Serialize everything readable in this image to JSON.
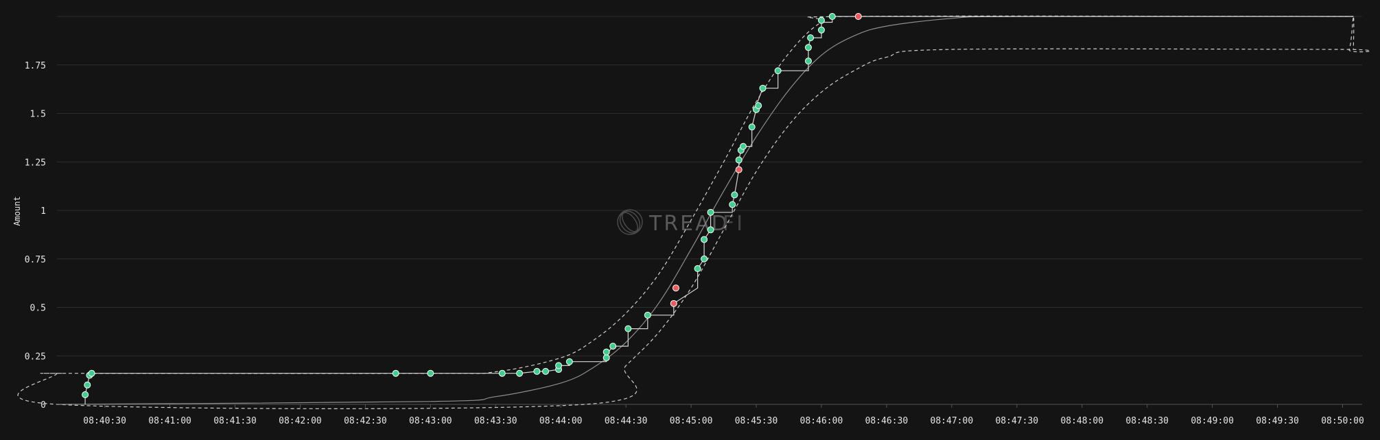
{
  "watermark": {
    "text": "TREAD",
    "suffix": "FI"
  },
  "chart_data": {
    "type": "scatter",
    "title": "",
    "xlabel": "",
    "ylabel": "Amount",
    "grid": true,
    "legend": "none",
    "ylim": [
      0,
      2
    ],
    "xlim": [
      "08:40:08",
      "08:50:09"
    ],
    "yticks": [
      {
        "value": 0,
        "label": "0"
      },
      {
        "value": 0.25,
        "label": "0.25"
      },
      {
        "value": 0.5,
        "label": "0.5"
      },
      {
        "value": 0.75,
        "label": "0.75"
      },
      {
        "value": 1,
        "label": "1"
      },
      {
        "value": 1.25,
        "label": "1.25"
      },
      {
        "value": 1.5,
        "label": "1.5"
      },
      {
        "value": 1.75,
        "label": "1.75"
      }
    ],
    "xticks": [
      "08:40:30",
      "08:41:00",
      "08:41:30",
      "08:42:00",
      "08:42:30",
      "08:43:00",
      "08:43:30",
      "08:44:00",
      "08:44:30",
      "08:45:00",
      "08:45:30",
      "08:46:00",
      "08:46:30",
      "08:47:00",
      "08:47:30",
      "08:48:00",
      "08:48:30",
      "08:49:00",
      "08:49:30",
      "08:50:00"
    ],
    "colors": {
      "fill": "#3ecf8e",
      "cancel": "#f05a5a",
      "line": "#d6d6d6",
      "grid": "#2e2e2e",
      "background": "#141414"
    },
    "expected_curve": [
      [
        "08:40:08",
        0
      ],
      [
        "08:43:00",
        0.015
      ],
      [
        "08:43:30",
        0.04
      ],
      [
        "08:44:00",
        0.11
      ],
      [
        "08:44:15",
        0.19
      ],
      [
        "08:44:30",
        0.32
      ],
      [
        "08:44:45",
        0.52
      ],
      [
        "08:45:00",
        0.8
      ],
      [
        "08:45:15",
        1.1
      ],
      [
        "08:45:30",
        1.38
      ],
      [
        "08:45:45",
        1.62
      ],
      [
        "08:46:00",
        1.8
      ],
      [
        "08:46:15",
        1.9
      ],
      [
        "08:46:30",
        1.95
      ],
      [
        "08:47:00",
        1.99
      ],
      [
        "08:47:30",
        2
      ],
      [
        "08:50:05",
        2
      ]
    ],
    "upper_bound": [
      [
        "08:40:08",
        0.16
      ],
      [
        "08:40:12",
        0.16
      ],
      [
        "08:40:13",
        0.16
      ],
      [
        "08:43:00",
        0.16
      ],
      [
        "08:43:30",
        0.168
      ],
      [
        "08:44:00",
        0.24
      ],
      [
        "08:44:15",
        0.33
      ],
      [
        "08:44:30",
        0.47
      ],
      [
        "08:44:45",
        0.67
      ],
      [
        "08:45:00",
        0.95
      ],
      [
        "08:45:15",
        1.25
      ],
      [
        "08:45:30",
        1.56
      ],
      [
        "08:45:45",
        1.81
      ],
      [
        "08:46:00",
        1.97
      ],
      [
        "08:46:15",
        2
      ],
      [
        "08:50:05",
        2
      ]
    ],
    "lower_bound": [
      [
        "08:40:08",
        0.16
      ],
      [
        "08:40:08",
        0
      ],
      [
        "08:44:11",
        0
      ],
      [
        "08:44:30",
        0.2
      ],
      [
        "08:44:45",
        0.37
      ],
      [
        "08:45:00",
        0.6
      ],
      [
        "08:45:15",
        0.9
      ],
      [
        "08:45:30",
        1.2
      ],
      [
        "08:45:45",
        1.44
      ],
      [
        "08:46:00",
        1.61
      ],
      [
        "08:46:15",
        1.72
      ],
      [
        "08:46:30",
        1.79
      ],
      [
        "08:47:00",
        1.83
      ],
      [
        "08:49:58",
        1.83
      ],
      [
        "08:50:03",
        1.83
      ],
      [
        "08:50:05",
        2
      ],
      [
        "08:50:05",
        1.83
      ]
    ],
    "executed": [
      [
        "08:40:21",
        0
      ],
      [
        "08:40:21",
        0.05
      ],
      [
        "08:40:22",
        0.1
      ],
      [
        "08:40:23",
        0.15
      ],
      [
        "08:40:24",
        0.16
      ],
      [
        "08:42:44",
        0.16
      ],
      [
        "08:43:00",
        0.16
      ],
      [
        "08:43:33",
        0.16
      ],
      [
        "08:43:41",
        0.16
      ],
      [
        "08:43:49",
        0.17
      ],
      [
        "08:43:53",
        0.17
      ],
      [
        "08:43:59",
        0.18
      ],
      [
        "08:43:59",
        0.2
      ],
      [
        "08:44:04",
        0.2
      ],
      [
        "08:44:04",
        0.22
      ],
      [
        "08:44:21",
        0.22
      ],
      [
        "08:44:21",
        0.24
      ],
      [
        "08:44:22",
        0.27
      ],
      [
        "08:44:24",
        0.3
      ],
      [
        "08:44:31",
        0.3
      ],
      [
        "08:44:31",
        0.39
      ],
      [
        "08:44:40",
        0.39
      ],
      [
        "08:44:40",
        0.46
      ],
      [
        "08:44:52",
        0.46
      ],
      [
        "08:44:52",
        0.52
      ],
      [
        "08:45:03",
        0.6
      ],
      [
        "08:45:03",
        0.7
      ],
      [
        "08:45:06",
        0.75
      ],
      [
        "08:45:06",
        0.85
      ],
      [
        "08:45:09",
        0.9
      ],
      [
        "08:45:09",
        0.99
      ],
      [
        "08:45:19",
        0.99
      ],
      [
        "08:45:19",
        1.03
      ],
      [
        "08:45:20",
        1.08
      ],
      [
        "08:45:22",
        1.21
      ],
      [
        "08:45:22",
        1.26
      ],
      [
        "08:45:23",
        1.31
      ],
      [
        "08:45:24",
        1.33
      ],
      [
        "08:45:28",
        1.33
      ],
      [
        "08:45:28",
        1.43
      ],
      [
        "08:45:30",
        1.52
      ],
      [
        "08:45:30",
        1.54
      ],
      [
        "08:45:33",
        1.63
      ],
      [
        "08:45:40",
        1.63
      ],
      [
        "08:45:40",
        1.72
      ],
      [
        "08:45:54",
        1.72
      ],
      [
        "08:45:54",
        1.77
      ],
      [
        "08:45:54",
        1.84
      ],
      [
        "08:45:55",
        1.89
      ],
      [
        "08:46:00",
        1.89
      ],
      [
        "08:46:00",
        1.93
      ],
      [
        "08:46:00",
        1.97
      ],
      [
        "08:46:05",
        1.97
      ],
      [
        "08:46:05",
        2
      ],
      [
        "08:50:05",
        2
      ]
    ],
    "fills": [
      [
        "08:40:21",
        0.05
      ],
      [
        "08:40:22",
        0.1
      ],
      [
        "08:40:23",
        0.15
      ],
      [
        "08:40:24",
        0.16
      ],
      [
        "08:42:44",
        0.16
      ],
      [
        "08:43:00",
        0.16
      ],
      [
        "08:43:33",
        0.16
      ],
      [
        "08:43:41",
        0.16
      ],
      [
        "08:43:49",
        0.17
      ],
      [
        "08:43:53",
        0.17
      ],
      [
        "08:43:59",
        0.18
      ],
      [
        "08:43:59",
        0.2
      ],
      [
        "08:44:04",
        0.22
      ],
      [
        "08:44:21",
        0.24
      ],
      [
        "08:44:21",
        0.27
      ],
      [
        "08:44:24",
        0.3
      ],
      [
        "08:44:31",
        0.39
      ],
      [
        "08:44:40",
        0.46
      ],
      [
        "08:45:03",
        0.7
      ],
      [
        "08:45:06",
        0.75
      ],
      [
        "08:45:06",
        0.85
      ],
      [
        "08:45:09",
        0.9
      ],
      [
        "08:45:09",
        0.99
      ],
      [
        "08:45:19",
        1.03
      ],
      [
        "08:45:20",
        1.08
      ],
      [
        "08:45:22",
        1.26
      ],
      [
        "08:45:23",
        1.31
      ],
      [
        "08:45:24",
        1.33
      ],
      [
        "08:45:28",
        1.43
      ],
      [
        "08:45:30",
        1.52
      ],
      [
        "08:45:31",
        1.54
      ],
      [
        "08:45:33",
        1.63
      ],
      [
        "08:45:40",
        1.72
      ],
      [
        "08:45:54",
        1.77
      ],
      [
        "08:45:54",
        1.84
      ],
      [
        "08:45:55",
        1.89
      ],
      [
        "08:46:00",
        1.93
      ],
      [
        "08:46:00",
        1.98
      ],
      [
        "08:46:05",
        2
      ]
    ],
    "cancels": [
      [
        "08:44:52",
        0.52
      ],
      [
        "08:44:53",
        0.6
      ],
      [
        "08:45:22",
        1.21
      ],
      [
        "08:46:17",
        2
      ]
    ]
  }
}
